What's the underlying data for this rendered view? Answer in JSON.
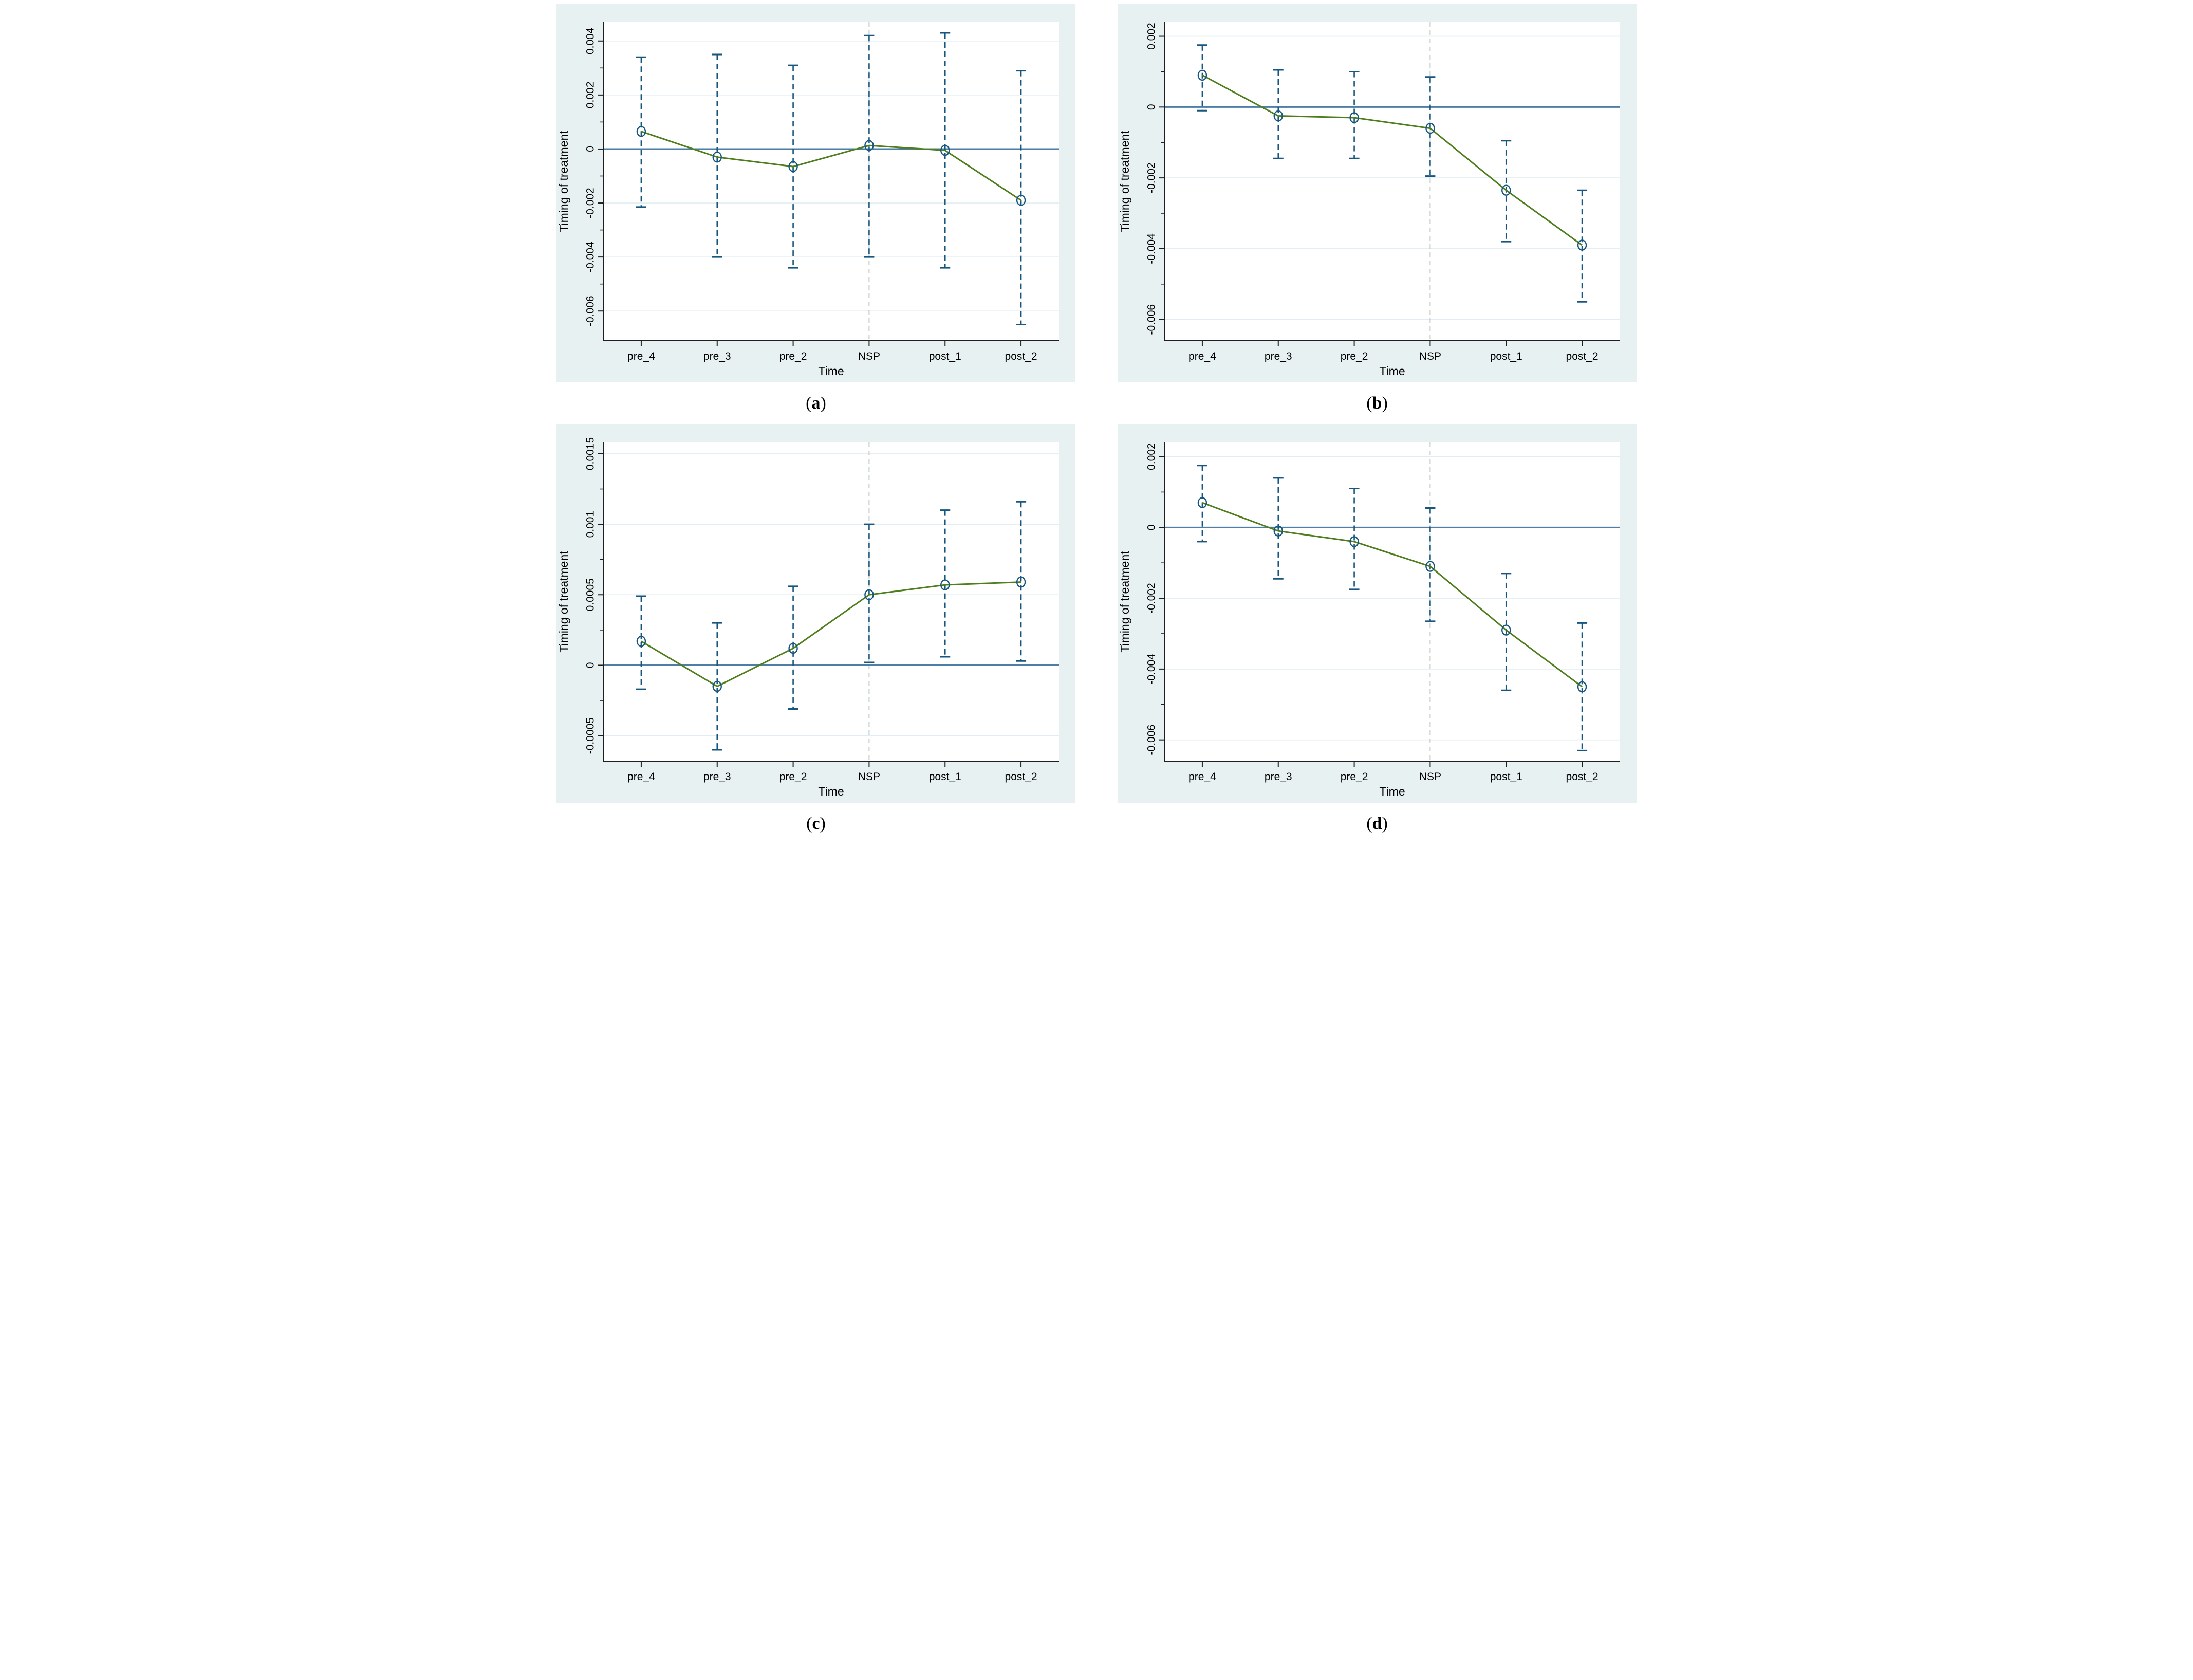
{
  "figure": {
    "caption": {
      "open": "(",
      "close": ")"
    },
    "colors": {
      "card_bg": "#e8f1f1",
      "plot_bg": "#ffffff",
      "grid": "#e0edf2",
      "zero_line": "#4d7ea8",
      "axis": "#1f1f1f",
      "ci": "#17567e",
      "marker": "#17567e",
      "series": "#4f7f1d",
      "nsp_line": "#a9bfb4",
      "text": "#000000"
    }
  },
  "chart_data": [
    {
      "type": "line",
      "panel_label": "a",
      "xlabel": "Time",
      "ylabel": "Timing of treatment",
      "categories": [
        "pre_4",
        "pre_3",
        "pre_2",
        "NSP",
        "post_1",
        "post_2"
      ],
      "series": [
        {
          "name": "Timing of treatment",
          "values": [
            0.00065,
            -0.0003,
            -0.00065,
            0.00013,
            -5e-05,
            -0.0019
          ]
        }
      ],
      "ci_high": [
        0.0034,
        0.0035,
        0.0031,
        0.0042,
        0.0043,
        0.0029
      ],
      "ci_low": [
        -0.00215,
        -0.004,
        -0.0044,
        -0.004,
        -0.0044,
        -0.0065
      ],
      "ylim": [
        -0.0071,
        0.0047
      ],
      "yticks": [
        {
          "v": 0.004,
          "label": "0.004"
        },
        {
          "v": 0.002,
          "label": "0.002"
        },
        {
          "v": 0,
          "label": "0"
        },
        {
          "v": -0.002,
          "label": "-0.002"
        },
        {
          "v": -0.004,
          "label": "-0.004"
        },
        {
          "v": -0.006,
          "label": "-0.006"
        }
      ],
      "minor_yticks": [
        0.003,
        0.001,
        -0.001,
        -0.003,
        -0.005
      ],
      "nsp_vline_index": 3,
      "zero_line": true,
      "grid": true,
      "legend": "none"
    },
    {
      "type": "line",
      "panel_label": "b",
      "xlabel": "Time",
      "ylabel": "Timing of treatment",
      "categories": [
        "pre_4",
        "pre_3",
        "pre_2",
        "NSP",
        "post_1",
        "post_2"
      ],
      "series": [
        {
          "name": "Timing of treatment",
          "values": [
            0.0009,
            -0.00025,
            -0.0003,
            -0.0006,
            -0.00235,
            -0.0039
          ]
        }
      ],
      "ci_high": [
        0.00175,
        0.00105,
        0.001,
        0.00085,
        -0.00095,
        -0.00235
      ],
      "ci_low": [
        -0.0001,
        -0.00145,
        -0.00145,
        -0.00195,
        -0.0038,
        -0.0055
      ],
      "ylim": [
        -0.0066,
        0.0024
      ],
      "yticks": [
        {
          "v": 0.002,
          "label": "0.002"
        },
        {
          "v": 0,
          "label": "0"
        },
        {
          "v": -0.002,
          "label": "-0.002"
        },
        {
          "v": -0.004,
          "label": "-0.004"
        },
        {
          "v": -0.006,
          "label": "-0.006"
        }
      ],
      "minor_yticks": [
        0.001,
        -0.001,
        -0.003,
        -0.005
      ],
      "nsp_vline_index": 3,
      "zero_line": true,
      "grid": true,
      "legend": "none"
    },
    {
      "type": "line",
      "panel_label": "c",
      "xlabel": "Time",
      "ylabel": "Timing of treatment",
      "categories": [
        "pre_4",
        "pre_3",
        "pre_2",
        "NSP",
        "post_1",
        "post_2"
      ],
      "series": [
        {
          "name": "Timing of treatment",
          "values": [
            0.00017,
            -0.00015,
            0.00012,
            0.0005,
            0.00057,
            0.00059
          ]
        }
      ],
      "ci_high": [
        0.00049,
        0.0003,
        0.00056,
        0.001,
        0.0011,
        0.00116
      ],
      "ci_low": [
        -0.00017,
        -0.0006,
        -0.00031,
        2e-05,
        6e-05,
        3e-05
      ],
      "ylim": [
        -0.00068,
        0.00158
      ],
      "yticks": [
        {
          "v": 0.0015,
          "label": "0.0015"
        },
        {
          "v": 0.001,
          "label": "0.001"
        },
        {
          "v": 0.0005,
          "label": "0.0005"
        },
        {
          "v": 0,
          "label": "0"
        },
        {
          "v": -0.0005,
          "label": "-0.0005"
        }
      ],
      "minor_yticks": [
        0.00125,
        0.00075,
        0.00025,
        -0.00025
      ],
      "nsp_vline_index": 3,
      "zero_line": true,
      "grid": true,
      "legend": "none"
    },
    {
      "type": "line",
      "panel_label": "d",
      "xlabel": "Time",
      "ylabel": "Timing of treatment",
      "categories": [
        "pre_4",
        "pre_3",
        "pre_2",
        "NSP",
        "post_1",
        "post_2"
      ],
      "series": [
        {
          "name": "Timing of treatment",
          "values": [
            0.0007,
            -0.0001,
            -0.0004,
            -0.0011,
            -0.0029,
            -0.0045
          ]
        }
      ],
      "ci_high": [
        0.00175,
        0.0014,
        0.0011,
        0.00055,
        -0.0013,
        -0.0027
      ],
      "ci_low": [
        -0.0004,
        -0.00145,
        -0.00175,
        -0.00265,
        -0.0046,
        -0.0063
      ],
      "ylim": [
        -0.0066,
        0.0024
      ],
      "yticks": [
        {
          "v": 0.002,
          "label": "0.002"
        },
        {
          "v": 0,
          "label": "0"
        },
        {
          "v": -0.002,
          "label": "-0.002"
        },
        {
          "v": -0.004,
          "label": "-0.004"
        },
        {
          "v": -0.006,
          "label": "-0.006"
        }
      ],
      "minor_yticks": [
        0.001,
        -0.001,
        -0.003,
        -0.005
      ],
      "nsp_vline_index": 3,
      "zero_line": true,
      "grid": true,
      "legend": "none"
    }
  ]
}
